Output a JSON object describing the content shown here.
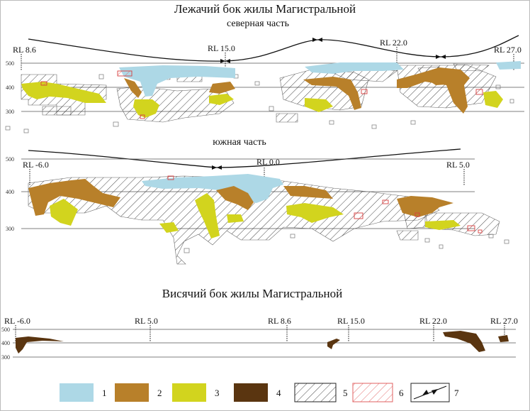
{
  "colors": {
    "c1": "#add8e6",
    "c2": "#b8802a",
    "c3": "#d2d41e",
    "c4": "#5a3510",
    "hatch_black": "#333333",
    "hatch_red": "#e06060",
    "grid": "#555555"
  },
  "north": {
    "title": "Лежачий бок жилы Магистральной",
    "subtitle": "северная часть",
    "rl_labels": [
      "RL 8.6",
      "RL 15.0",
      "RL 22.0",
      "RL 27.0"
    ],
    "elev_labels": [
      "500",
      "400",
      "300"
    ]
  },
  "south": {
    "subtitle": "южная часть",
    "rl_labels": [
      "RL -6.0",
      "RL 0.0",
      "RL 5.0"
    ],
    "elev_labels": [
      "500",
      "400",
      "300"
    ]
  },
  "hanging": {
    "title": "Висячий бок жилы Магистральной",
    "rl_labels": [
      "RL -6.0",
      "RL 5.0",
      "RL 8.6",
      "RL 15.0",
      "RL 22.0",
      "RL 27.0"
    ],
    "elev_labels": [
      "500",
      "400",
      "300"
    ]
  },
  "legend": [
    {
      "num": "1",
      "type": "fill",
      "color": "#add8e6"
    },
    {
      "num": "2",
      "type": "fill",
      "color": "#b8802a"
    },
    {
      "num": "3",
      "type": "fill",
      "color": "#d2d41e"
    },
    {
      "num": "4",
      "type": "fill",
      "color": "#5a3510"
    },
    {
      "num": "5",
      "type": "hatch-black"
    },
    {
      "num": "6",
      "type": "hatch-red"
    },
    {
      "num": "7",
      "type": "arrows"
    }
  ]
}
